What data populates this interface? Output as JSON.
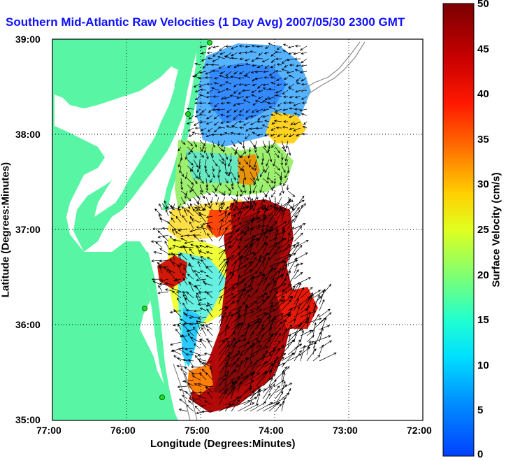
{
  "title": "Southern Mid-Atlantic Raw Velocities (1 Day Avg) 2007/05/30 2300 GMT",
  "x_axis": {
    "label": "Longitude (Degrees:Minutes)",
    "ticks": [
      "77:00",
      "76:00",
      "75:00",
      "74:00",
      "73:00",
      "72:00"
    ]
  },
  "y_axis": {
    "label": "Latitude (Degrees:Minutes)",
    "ticks": [
      "39:00",
      "38:00",
      "37:00",
      "36:00",
      "35:00"
    ]
  },
  "colorbar": {
    "label": "Surface Velocity (cm/s)",
    "ticks": [
      "50",
      "45",
      "40",
      "35",
      "30",
      "25",
      "20",
      "15",
      "10",
      "5",
      "0"
    ],
    "range": [
      0,
      50
    ]
  },
  "colors": {
    "land": "#57f5a4",
    "water": "#ffffff",
    "title": "#1010ff",
    "grid": "#000000"
  },
  "map": {
    "lon_range": [
      -77,
      -72
    ],
    "lat_range": [
      35,
      39
    ],
    "grid": true
  }
}
